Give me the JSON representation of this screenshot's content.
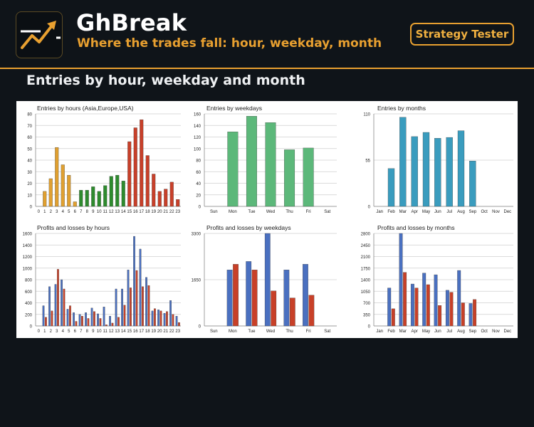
{
  "app": {
    "title": "GhBreak",
    "subtitle": "Where the trades fall: hour, weekday, month",
    "button": "Strategy Tester",
    "section_title": "Entries by hour, weekday and month",
    "logo_icon": "chart-trend-up-icon"
  },
  "colors": {
    "accent": "#e8a030",
    "bg": "#0f1419",
    "asia": "#e0a030",
    "europe": "#2e8b2e",
    "usa": "#c8402a",
    "weekday_bar": "#5cb87a",
    "month_bar": "#3a9cbe",
    "profit": "#4a70c0",
    "loss": "#c84028"
  },
  "chart_data": [
    {
      "type": "bar",
      "title": "Entries by hours (Asia,Europe,USA)",
      "categories": [
        "0",
        "1",
        "2",
        "3",
        "4",
        "5",
        "6",
        "7",
        "8",
        "9",
        "10",
        "11",
        "12",
        "13",
        "14",
        "15",
        "16",
        "17",
        "18",
        "19",
        "20",
        "21",
        "22",
        "23"
      ],
      "values": [
        0,
        13,
        24,
        51,
        36,
        27,
        4,
        14,
        14,
        17,
        13,
        18,
        26,
        27,
        22,
        56,
        68,
        75,
        44,
        28,
        13,
        15,
        21,
        6
      ],
      "color_groups": [
        "asia",
        "asia",
        "asia",
        "asia",
        "asia",
        "asia",
        "asia",
        "europe",
        "europe",
        "europe",
        "europe",
        "europe",
        "europe",
        "europe",
        "europe",
        "usa",
        "usa",
        "usa",
        "usa",
        "usa",
        "usa",
        "usa",
        "usa",
        "usa"
      ],
      "ylim": [
        0,
        80
      ],
      "yticks": [
        0,
        10,
        20,
        30,
        40,
        50,
        60,
        70,
        80
      ]
    },
    {
      "type": "bar",
      "title": "Entries by weekdays",
      "categories": [
        "Sun",
        "Mon",
        "Tue",
        "Wed",
        "Thu",
        "Fri",
        "Sat"
      ],
      "values": [
        0,
        129,
        156,
        145,
        98,
        101,
        0
      ],
      "ylim": [
        0,
        160
      ],
      "yticks": [
        0,
        20,
        40,
        60,
        80,
        100,
        120,
        140,
        160
      ]
    },
    {
      "type": "bar",
      "title": "Entries by months",
      "categories": [
        "Jan",
        "Feb",
        "Mar",
        "Apr",
        "May",
        "Jun",
        "Jul",
        "Aug",
        "Sep",
        "Oct",
        "Nov",
        "Dec"
      ],
      "values": [
        0,
        45,
        106,
        83,
        88,
        81,
        82,
        90,
        54,
        0,
        0,
        0
      ],
      "ylim": [
        0,
        110
      ],
      "yticks": [
        0,
        55,
        110
      ]
    },
    {
      "type": "bar",
      "title": "Profits and losses by hours",
      "categories": [
        "0",
        "1",
        "2",
        "3",
        "4",
        "5",
        "6",
        "7",
        "8",
        "9",
        "10",
        "11",
        "12",
        "13",
        "14",
        "15",
        "16",
        "17",
        "18",
        "19",
        "20",
        "21",
        "22",
        "23"
      ],
      "series": [
        {
          "values": [
            0,
            350,
            680,
            720,
            800,
            290,
            230,
            200,
            230,
            310,
            210,
            330,
            170,
            640,
            640,
            970,
            1550,
            1330,
            840,
            260,
            280,
            220,
            440,
            170
          ]
        },
        {
          "values": [
            0,
            150,
            260,
            980,
            640,
            350,
            80,
            170,
            130,
            250,
            130,
            20,
            50,
            150,
            360,
            660,
            960,
            680,
            700,
            300,
            260,
            250,
            200,
            60
          ]
        }
      ],
      "ylim": [
        0,
        1600
      ],
      "yticks": [
        0,
        200,
        400,
        600,
        800,
        1000,
        1200,
        1400,
        1600
      ]
    },
    {
      "type": "bar",
      "title": "Profits and losses by weekdays",
      "categories": [
        "Sun",
        "Mon",
        "Tue",
        "Wed",
        "Thu",
        "Fri",
        "Sat"
      ],
      "series": [
        {
          "values": [
            0,
            2000,
            2300,
            3300,
            2000,
            2200,
            0
          ]
        },
        {
          "values": [
            0,
            2200,
            2000,
            1250,
            1000,
            1100,
            0
          ]
        }
      ],
      "ylim": [
        0,
        3300
      ],
      "yticks": [
        0,
        1650,
        3300
      ]
    },
    {
      "type": "bar",
      "title": "Profits and losses by months",
      "categories": [
        "Jan",
        "Feb",
        "Mar",
        "Apr",
        "May",
        "Jun",
        "Jul",
        "Aug",
        "Sep",
        "Oct",
        "Nov",
        "Dec"
      ],
      "series": [
        {
          "values": [
            0,
            1150,
            2800,
            1270,
            1600,
            1550,
            1080,
            1680,
            680,
            0,
            0,
            0
          ]
        },
        {
          "values": [
            0,
            520,
            1620,
            1150,
            1250,
            620,
            1020,
            700,
            800,
            0,
            0,
            0
          ]
        }
      ],
      "ylim": [
        0,
        2800
      ],
      "yticks": [
        0,
        350,
        700,
        1050,
        1400,
        1750,
        2100,
        2450,
        2800
      ]
    }
  ]
}
